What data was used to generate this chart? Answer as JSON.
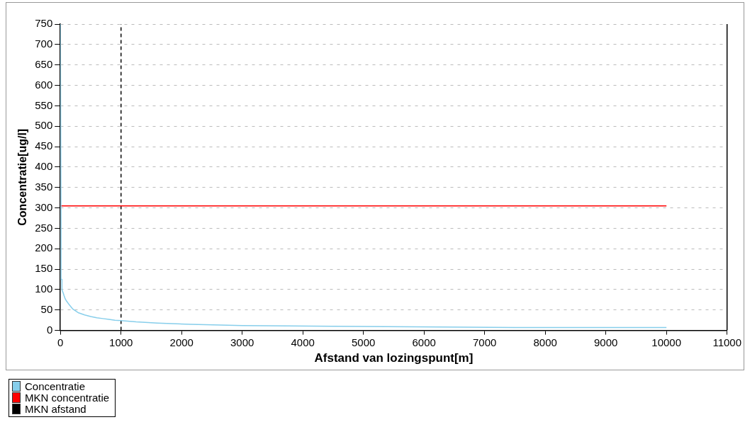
{
  "chart_data": {
    "type": "line",
    "xlabel": "Afstand van lozingspunt[m]",
    "ylabel": "Concentratie[ug/l]",
    "xlim": [
      0,
      11000
    ],
    "xticks": [
      0,
      1000,
      2000,
      3000,
      4000,
      5000,
      6000,
      7000,
      8000,
      9000,
      10000,
      11000
    ],
    "ylim": [
      0,
      750
    ],
    "yticks": [
      0,
      50,
      100,
      150,
      200,
      250,
      300,
      350,
      400,
      450,
      500,
      550,
      600,
      650,
      700,
      750
    ],
    "grid": "y",
    "legend": "bottom left",
    "marker": "none",
    "series": [
      {
        "name": "Concentratie",
        "color": "#87ceeb",
        "x": [
          0,
          10,
          10,
          25,
          25,
          50,
          60,
          80,
          100,
          150,
          200,
          300,
          400,
          500,
          600,
          700,
          800,
          900,
          1000,
          1250,
          1600,
          2150,
          3000,
          4500,
          7500,
          10000
        ],
        "values": [
          750,
          265,
          125,
          125,
          100,
          90,
          85,
          77,
          72,
          62,
          53,
          43,
          38,
          34,
          31,
          29,
          27,
          25,
          24,
          21,
          18,
          15,
          12,
          10,
          7,
          7
        ]
      },
      {
        "name": "MKN concentratie",
        "color": "#ff0000",
        "x": [
          0,
          10000
        ],
        "values": [
          305,
          305
        ]
      },
      {
        "name": "MKN afstand",
        "color": "#000000",
        "x": [
          1000,
          1000
        ],
        "values": [
          0,
          750
        ],
        "line_style": "dashed"
      }
    ]
  }
}
